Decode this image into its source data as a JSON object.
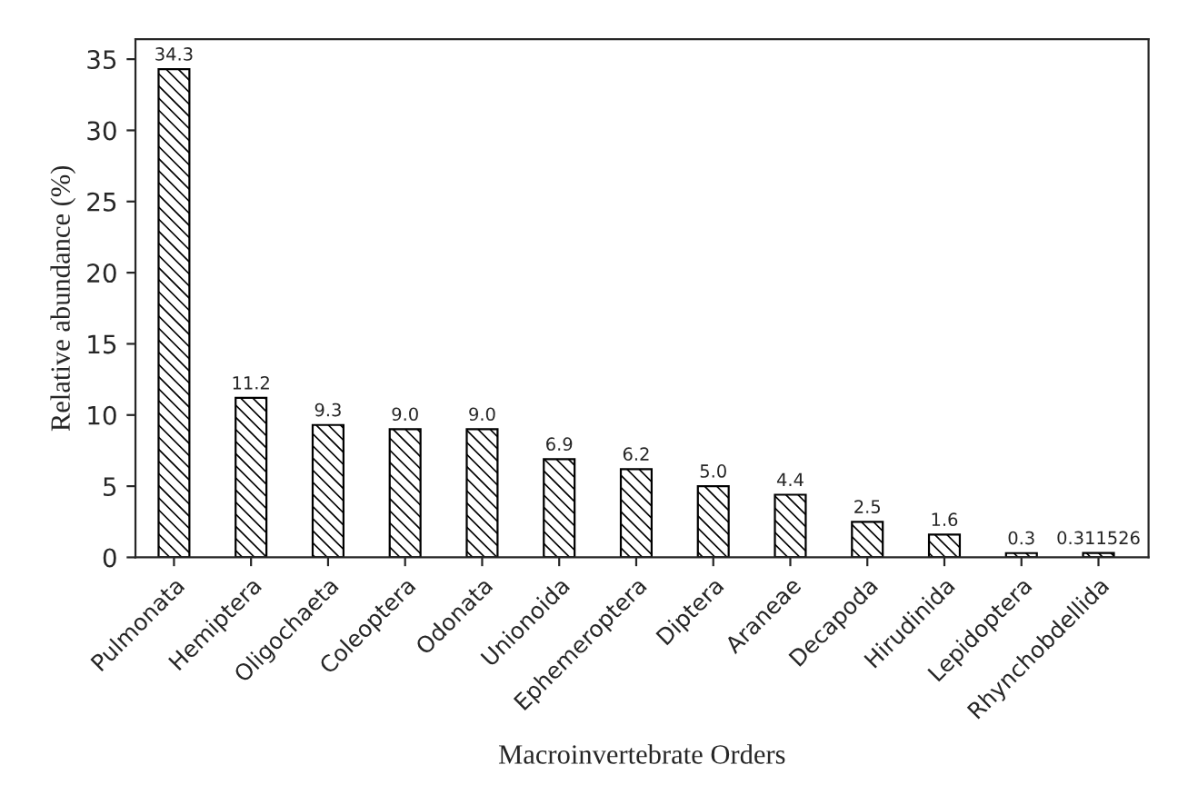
{
  "chart_data": {
    "type": "bar",
    "xlabel": "Macroinvertebrate Orders",
    "ylabel": "Relative abundance (%)",
    "categories": [
      "Pulmonata",
      "Hemiptera",
      "Oligochaeta",
      "Coleoptera",
      "Odonata",
      "Unionoida",
      "Ephemeroptera",
      "Diptera",
      "Araneae",
      "Decapoda",
      "Hirudinida",
      "Lepidoptera",
      "Rhynchobdellida"
    ],
    "values": [
      34.3,
      11.2,
      9.3,
      9.0,
      9.0,
      6.9,
      6.2,
      5.0,
      4.4,
      2.5,
      1.6,
      0.3,
      0.311526
    ],
    "value_labels": [
      "34.3",
      "11.2",
      "9.3",
      "9.0",
      "9.0",
      "6.9",
      "6.2",
      "5.0",
      "4.4",
      "2.5",
      "1.6",
      "0.3",
      "0.311526"
    ],
    "ylim": [
      0,
      36.4
    ],
    "yticks": [
      0,
      5,
      10,
      15,
      20,
      25,
      30,
      35
    ],
    "grid": false
  }
}
